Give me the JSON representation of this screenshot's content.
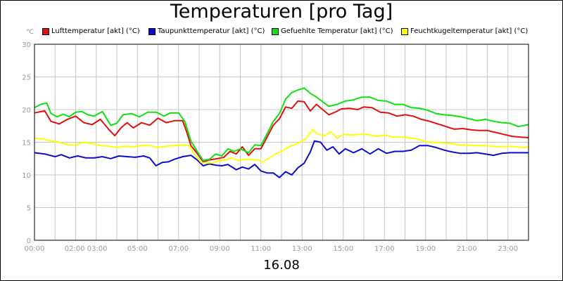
{
  "chart_data": {
    "type": "line",
    "title": "Temperaturen [pro Tag]",
    "xlabel": "16.08",
    "ylabel": "°C",
    "ylim": [
      0,
      30
    ],
    "yticks": [
      "0",
      "5",
      "10",
      "15",
      "20",
      "25",
      "30"
    ],
    "xlim": [
      0,
      24
    ],
    "xticks": [
      {
        "t": 0,
        "label": "00:00"
      },
      {
        "t": 2.5,
        "label": "02:00 03:00"
      },
      {
        "t": 5,
        "label": "05:00"
      },
      {
        "t": 7,
        "label": "07:00"
      },
      {
        "t": 9,
        "label": "09:00"
      },
      {
        "t": 11,
        "label": "11:00"
      },
      {
        "t": 13,
        "label": "13:00"
      },
      {
        "t": 15,
        "label": "15:00"
      },
      {
        "t": 17,
        "label": "17:00"
      },
      {
        "t": 19,
        "label": "19:00"
      },
      {
        "t": 21,
        "label": "21:00"
      },
      {
        "t": 23,
        "label": "23:00"
      }
    ],
    "grid": true,
    "legend_position": "top",
    "series": [
      {
        "name": "Lufttemperatur [akt] (°C)",
        "color": "#e01010",
        "points": [
          [
            0,
            19.5
          ],
          [
            0.5,
            19.8
          ],
          [
            0.8,
            18.2
          ],
          [
            1.2,
            17.8
          ],
          [
            1.6,
            18.5
          ],
          [
            2.0,
            19.0
          ],
          [
            2.4,
            18.0
          ],
          [
            2.8,
            17.7
          ],
          [
            3.2,
            18.5
          ],
          [
            3.6,
            17.0
          ],
          [
            3.9,
            16.0
          ],
          [
            4.2,
            17.2
          ],
          [
            4.5,
            18.0
          ],
          [
            4.8,
            17.2
          ],
          [
            5.2,
            18.0
          ],
          [
            5.6,
            17.6
          ],
          [
            6.0,
            18.7
          ],
          [
            6.4,
            18.0
          ],
          [
            6.8,
            18.3
          ],
          [
            7.2,
            18.3
          ],
          [
            7.4,
            16.5
          ],
          [
            7.6,
            14.5
          ],
          [
            7.9,
            13.3
          ],
          [
            8.2,
            12.0
          ],
          [
            8.5,
            12.3
          ],
          [
            8.9,
            12.5
          ],
          [
            9.2,
            12.7
          ],
          [
            9.5,
            13.6
          ],
          [
            9.8,
            13.2
          ],
          [
            10.1,
            14.3
          ],
          [
            10.4,
            13.0
          ],
          [
            10.7,
            14.0
          ],
          [
            11.0,
            14.0
          ],
          [
            11.3,
            15.8
          ],
          [
            11.6,
            17.6
          ],
          [
            11.9,
            18.6
          ],
          [
            12.2,
            20.4
          ],
          [
            12.5,
            20.2
          ],
          [
            12.8,
            21.3
          ],
          [
            13.1,
            21.2
          ],
          [
            13.4,
            19.8
          ],
          [
            13.7,
            20.8
          ],
          [
            14.0,
            20.0
          ],
          [
            14.3,
            19.2
          ],
          [
            14.6,
            19.6
          ],
          [
            14.9,
            20.1
          ],
          [
            15.3,
            20.2
          ],
          [
            15.7,
            20.0
          ],
          [
            16.0,
            20.4
          ],
          [
            16.4,
            20.3
          ],
          [
            16.8,
            19.6
          ],
          [
            17.2,
            19.5
          ],
          [
            17.6,
            19.0
          ],
          [
            18.0,
            19.2
          ],
          [
            18.4,
            19.0
          ],
          [
            18.8,
            18.5
          ],
          [
            19.2,
            18.2
          ],
          [
            19.6,
            17.8
          ],
          [
            20.0,
            17.4
          ],
          [
            20.4,
            17.0
          ],
          [
            20.8,
            17.1
          ],
          [
            21.2,
            16.9
          ],
          [
            21.6,
            16.8
          ],
          [
            22.0,
            16.8
          ],
          [
            22.4,
            16.5
          ],
          [
            22.8,
            16.2
          ],
          [
            23.2,
            15.9
          ],
          [
            23.6,
            15.8
          ],
          [
            24.0,
            15.7
          ]
        ]
      },
      {
        "name": "Taupunkttemperatur [akt] (°C)",
        "color": "#0c0cd0",
        "points": [
          [
            0,
            13.4
          ],
          [
            0.5,
            13.2
          ],
          [
            1.0,
            12.8
          ],
          [
            1.3,
            13.1
          ],
          [
            1.7,
            12.6
          ],
          [
            2.1,
            12.9
          ],
          [
            2.5,
            12.6
          ],
          [
            2.9,
            12.6
          ],
          [
            3.3,
            12.8
          ],
          [
            3.7,
            12.5
          ],
          [
            4.1,
            12.9
          ],
          [
            4.5,
            12.8
          ],
          [
            4.9,
            12.7
          ],
          [
            5.3,
            12.9
          ],
          [
            5.6,
            12.6
          ],
          [
            5.9,
            11.4
          ],
          [
            6.2,
            11.9
          ],
          [
            6.5,
            12.0
          ],
          [
            6.8,
            12.4
          ],
          [
            7.2,
            12.8
          ],
          [
            7.6,
            13.0
          ],
          [
            7.9,
            12.3
          ],
          [
            8.2,
            11.4
          ],
          [
            8.5,
            11.7
          ],
          [
            8.8,
            11.5
          ],
          [
            9.1,
            11.4
          ],
          [
            9.4,
            11.6
          ],
          [
            9.8,
            10.8
          ],
          [
            10.1,
            11.2
          ],
          [
            10.4,
            10.9
          ],
          [
            10.7,
            11.6
          ],
          [
            11.0,
            10.6
          ],
          [
            11.3,
            10.3
          ],
          [
            11.6,
            10.3
          ],
          [
            11.9,
            9.6
          ],
          [
            12.2,
            10.5
          ],
          [
            12.5,
            10.0
          ],
          [
            12.8,
            11.1
          ],
          [
            13.1,
            11.8
          ],
          [
            13.4,
            13.5
          ],
          [
            13.6,
            15.2
          ],
          [
            13.9,
            15.0
          ],
          [
            14.2,
            13.8
          ],
          [
            14.5,
            14.3
          ],
          [
            14.8,
            13.2
          ],
          [
            15.1,
            14.0
          ],
          [
            15.5,
            13.4
          ],
          [
            15.9,
            14.0
          ],
          [
            16.3,
            13.2
          ],
          [
            16.7,
            14.0
          ],
          [
            17.1,
            13.3
          ],
          [
            17.5,
            13.6
          ],
          [
            17.9,
            13.6
          ],
          [
            18.3,
            13.8
          ],
          [
            18.7,
            14.5
          ],
          [
            19.1,
            14.5
          ],
          [
            19.5,
            14.2
          ],
          [
            19.9,
            13.8
          ],
          [
            20.3,
            13.5
          ],
          [
            20.7,
            13.3
          ],
          [
            21.1,
            13.3
          ],
          [
            21.5,
            13.4
          ],
          [
            21.9,
            13.2
          ],
          [
            22.3,
            13.0
          ],
          [
            22.7,
            13.3
          ],
          [
            23.1,
            13.4
          ],
          [
            23.5,
            13.4
          ],
          [
            24.0,
            13.4
          ]
        ]
      },
      {
        "name": "Gefuehlte Temperatur [akt] (°C)",
        "color": "#10e010",
        "points": [
          [
            0,
            20.3
          ],
          [
            0.3,
            20.8
          ],
          [
            0.6,
            21.0
          ],
          [
            0.8,
            19.4
          ],
          [
            1.1,
            18.9
          ],
          [
            1.4,
            19.3
          ],
          [
            1.7,
            18.9
          ],
          [
            2.0,
            19.6
          ],
          [
            2.3,
            19.7
          ],
          [
            2.6,
            19.2
          ],
          [
            2.9,
            19.0
          ],
          [
            3.3,
            19.7
          ],
          [
            3.7,
            17.6
          ],
          [
            4.0,
            17.9
          ],
          [
            4.3,
            19.2
          ],
          [
            4.7,
            19.4
          ],
          [
            5.1,
            18.9
          ],
          [
            5.5,
            19.6
          ],
          [
            5.9,
            19.6
          ],
          [
            6.3,
            19.0
          ],
          [
            6.6,
            19.5
          ],
          [
            7.0,
            19.5
          ],
          [
            7.3,
            18.2
          ],
          [
            7.6,
            15.2
          ],
          [
            7.9,
            13.6
          ],
          [
            8.2,
            12.2
          ],
          [
            8.5,
            12.4
          ],
          [
            8.8,
            13.2
          ],
          [
            9.1,
            12.9
          ],
          [
            9.4,
            14.0
          ],
          [
            9.7,
            13.6
          ],
          [
            10.0,
            14.0
          ],
          [
            10.4,
            13.4
          ],
          [
            10.7,
            14.6
          ],
          [
            11.0,
            14.5
          ],
          [
            11.3,
            16.3
          ],
          [
            11.6,
            18.2
          ],
          [
            11.9,
            19.4
          ],
          [
            12.2,
            21.6
          ],
          [
            12.5,
            22.6
          ],
          [
            12.8,
            23.0
          ],
          [
            13.1,
            23.3
          ],
          [
            13.4,
            22.5
          ],
          [
            13.7,
            21.9
          ],
          [
            14.0,
            21.2
          ],
          [
            14.3,
            20.5
          ],
          [
            14.7,
            20.8
          ],
          [
            15.1,
            21.3
          ],
          [
            15.5,
            21.5
          ],
          [
            15.9,
            21.9
          ],
          [
            16.3,
            21.9
          ],
          [
            16.7,
            21.4
          ],
          [
            17.1,
            21.3
          ],
          [
            17.5,
            20.8
          ],
          [
            17.9,
            20.8
          ],
          [
            18.3,
            20.3
          ],
          [
            18.7,
            20.2
          ],
          [
            19.1,
            19.9
          ],
          [
            19.5,
            19.4
          ],
          [
            19.9,
            19.2
          ],
          [
            20.3,
            19.1
          ],
          [
            20.7,
            18.9
          ],
          [
            21.1,
            18.6
          ],
          [
            21.5,
            18.3
          ],
          [
            21.9,
            18.5
          ],
          [
            22.3,
            18.2
          ],
          [
            22.7,
            18.0
          ],
          [
            23.1,
            17.9
          ],
          [
            23.5,
            17.4
          ],
          [
            24.0,
            17.7
          ]
        ]
      },
      {
        "name": "Feuchtkugeltemperatur [akt] (°C)",
        "color": "#ffff00",
        "points": [
          [
            0,
            15.6
          ],
          [
            0.4,
            15.5
          ],
          [
            0.8,
            15.2
          ],
          [
            1.2,
            15.0
          ],
          [
            1.6,
            14.6
          ],
          [
            2.0,
            14.6
          ],
          [
            2.4,
            15.0
          ],
          [
            2.8,
            14.8
          ],
          [
            3.2,
            14.5
          ],
          [
            3.6,
            14.4
          ],
          [
            4.0,
            14.2
          ],
          [
            4.4,
            14.4
          ],
          [
            4.8,
            14.3
          ],
          [
            5.2,
            14.5
          ],
          [
            5.6,
            14.5
          ],
          [
            6.0,
            14.2
          ],
          [
            6.4,
            14.4
          ],
          [
            6.8,
            14.5
          ],
          [
            7.2,
            14.6
          ],
          [
            7.5,
            14.5
          ],
          [
            7.8,
            13.0
          ],
          [
            8.1,
            11.9
          ],
          [
            8.4,
            11.8
          ],
          [
            8.7,
            11.9
          ],
          [
            9.0,
            12.2
          ],
          [
            9.3,
            12.3
          ],
          [
            9.6,
            12.6
          ],
          [
            9.9,
            12.2
          ],
          [
            10.2,
            12.4
          ],
          [
            10.5,
            12.4
          ],
          [
            10.8,
            12.3
          ],
          [
            11.1,
            12.0
          ],
          [
            11.4,
            12.6
          ],
          [
            11.7,
            13.2
          ],
          [
            12.0,
            13.6
          ],
          [
            12.3,
            14.2
          ],
          [
            12.6,
            14.6
          ],
          [
            12.9,
            15.0
          ],
          [
            13.2,
            15.6
          ],
          [
            13.5,
            16.9
          ],
          [
            13.8,
            16.2
          ],
          [
            14.1,
            16.0
          ],
          [
            14.4,
            16.6
          ],
          [
            14.7,
            15.6
          ],
          [
            15.0,
            16.2
          ],
          [
            15.4,
            16.1
          ],
          [
            15.8,
            16.2
          ],
          [
            16.2,
            16.2
          ],
          [
            16.6,
            15.9
          ],
          [
            17.0,
            16.1
          ],
          [
            17.4,
            15.8
          ],
          [
            17.8,
            15.8
          ],
          [
            18.2,
            15.7
          ],
          [
            18.6,
            15.5
          ],
          [
            19.0,
            15.1
          ],
          [
            19.4,
            15.0
          ],
          [
            19.8,
            14.9
          ],
          [
            20.2,
            14.8
          ],
          [
            20.6,
            14.6
          ],
          [
            21.0,
            14.6
          ],
          [
            21.4,
            14.5
          ],
          [
            21.8,
            14.5
          ],
          [
            22.2,
            14.4
          ],
          [
            22.6,
            14.3
          ],
          [
            23.0,
            14.4
          ],
          [
            23.4,
            14.3
          ],
          [
            23.8,
            14.2
          ],
          [
            24.0,
            14.3
          ]
        ]
      }
    ]
  }
}
